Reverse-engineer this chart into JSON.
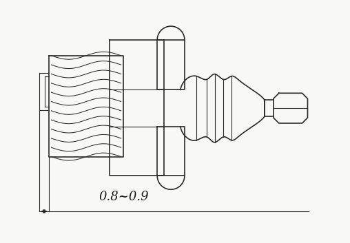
{
  "bg_color": "#f8f8f5",
  "line_color": "#2a2a2a",
  "dim_color": "#1a1a1a",
  "annotation_text": "0.8~0.9",
  "annotation_fontsize": 13,
  "figsize": [
    5.08,
    3.53
  ],
  "dpi": 100
}
